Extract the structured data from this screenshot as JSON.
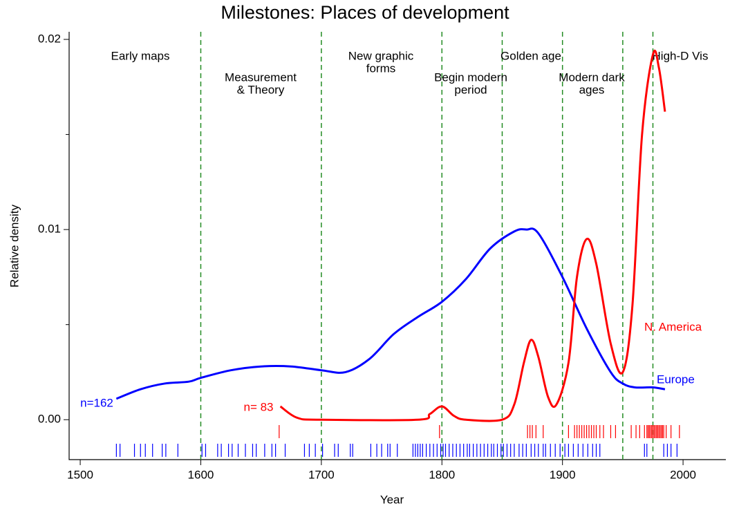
{
  "chart_data": {
    "type": "line",
    "title": "Milestones: Places of development",
    "x_label": "Year",
    "y_label": "Relative density",
    "xlim": [
      1490.8,
      2035.5
    ],
    "ylim": [
      -0.0021,
      0.0204
    ],
    "xticks": [
      1500,
      1600,
      1700,
      1800,
      1900,
      2000
    ],
    "yticks": [
      {
        "value": 0,
        "label": "0.00"
      },
      {
        "value": 0.01,
        "label": "0.01"
      },
      {
        "value": 0.02,
        "label": "0.02"
      }
    ],
    "yminor_ticks": [
      0.005,
      0.015
    ],
    "dividers": [
      1600,
      1700,
      1800,
      1850,
      1900,
      1950,
      1975
    ],
    "divider_color": "#228b22",
    "periods": [
      {
        "lines": [
          "Early maps"
        ]
      },
      {
        "lines": [
          "Measurement",
          "& Theory"
        ]
      },
      {
        "lines": [
          "New graphic",
          "forms"
        ]
      },
      {
        "lines": [
          "Begin modern",
          "period"
        ]
      },
      {
        "lines": [
          "Golden age"
        ]
      },
      {
        "lines": [
          "Modern dark",
          "ages"
        ]
      },
      {
        "lines": [
          "High-D Vis"
        ]
      }
    ],
    "series": [
      {
        "name": "Europe",
        "color": "#0000ff",
        "count_label": "n=162",
        "x": [
          1530,
          1550,
          1570,
          1590,
          1600,
          1625,
          1650,
          1675,
          1700,
          1720,
          1740,
          1760,
          1780,
          1800,
          1820,
          1840,
          1860,
          1870,
          1880,
          1900,
          1920,
          1940,
          1950,
          1960,
          1975,
          1985
        ],
        "values": [
          0.0011,
          0.0016,
          0.0019,
          0.002,
          0.0022,
          0.0026,
          0.0028,
          0.0028,
          0.0026,
          0.0025,
          0.0032,
          0.0045,
          0.0054,
          0.0062,
          0.0074,
          0.009,
          0.0099,
          0.01,
          0.0098,
          0.0075,
          0.0048,
          0.0025,
          0.0019,
          0.0017,
          0.0017,
          0.0016
        ],
        "rug": [
          1530,
          1533,
          1545,
          1550,
          1554,
          1560,
          1568,
          1571,
          1581,
          1601,
          1604,
          1614,
          1617,
          1623,
          1626,
          1631,
          1637,
          1643,
          1646,
          1653,
          1659,
          1662,
          1670,
          1686,
          1690,
          1695,
          1701,
          1711,
          1714,
          1724,
          1726,
          1741,
          1746,
          1750,
          1755,
          1757,
          1763,
          1776,
          1778,
          1780,
          1782,
          1784,
          1787,
          1790,
          1793,
          1796,
          1799,
          1801,
          1803,
          1806,
          1809,
          1812,
          1815,
          1818,
          1821,
          1823,
          1826,
          1829,
          1832,
          1835,
          1838,
          1841,
          1843,
          1846,
          1849,
          1851,
          1854,
          1857,
          1860,
          1864,
          1867,
          1870,
          1874,
          1877,
          1880,
          1884,
          1886,
          1890,
          1894,
          1898,
          1902,
          1905,
          1909,
          1913,
          1917,
          1921,
          1925,
          1928,
          1931,
          1968,
          1970,
          1984,
          1987,
          1990,
          1995
        ]
      },
      {
        "name": "N. America",
        "color": "#ff0000",
        "count_label": "n= 83",
        "x": [
          1666,
          1680,
          1700,
          1780,
          1790,
          1800,
          1810,
          1820,
          1850,
          1860,
          1868,
          1874,
          1880,
          1888,
          1895,
          1905,
          1912,
          1920,
          1928,
          1940,
          1950,
          1958,
          1966,
          1975,
          1980,
          1985
        ],
        "values": [
          0.0007,
          0.0001,
          0,
          0,
          0.0003,
          0.0007,
          0.0002,
          0,
          0,
          0.0008,
          0.003,
          0.0042,
          0.0033,
          0.0012,
          0.0008,
          0.003,
          0.0075,
          0.0095,
          0.0082,
          0.004,
          0.0025,
          0.006,
          0.015,
          0.0192,
          0.0185,
          0.0162
        ],
        "rug": [
          1665,
          1798,
          1871,
          1873,
          1875,
          1878,
          1884,
          1905,
          1910,
          1912,
          1914,
          1916,
          1918,
          1920,
          1922,
          1924,
          1926,
          1928,
          1931,
          1934,
          1940,
          1944,
          1957,
          1961,
          1964,
          1968,
          1970,
          1971,
          1972,
          1973,
          1974,
          1975,
          1976,
          1977,
          1978,
          1979,
          1980,
          1981,
          1982,
          1983,
          1984,
          1986,
          1990,
          1997
        ]
      }
    ]
  }
}
